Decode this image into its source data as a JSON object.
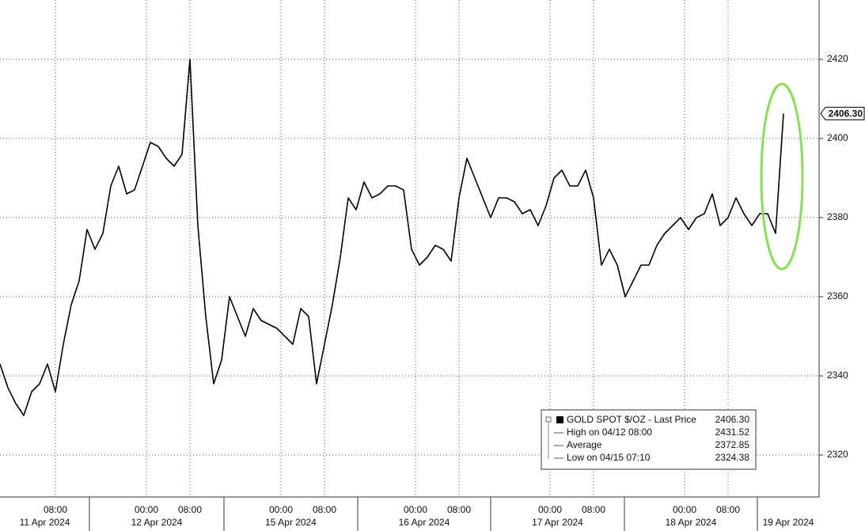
{
  "chart_data": {
    "type": "line",
    "x": [
      0,
      1,
      2,
      3,
      4,
      5,
      6,
      7,
      8,
      9,
      10,
      11,
      12,
      13,
      14,
      15,
      16,
      17,
      18,
      19,
      20,
      21,
      22,
      23,
      24,
      25,
      26,
      27,
      28,
      29,
      30,
      31,
      32,
      33,
      34,
      35,
      36,
      37,
      38,
      39,
      40,
      41,
      42,
      43,
      44,
      45,
      46,
      47,
      48,
      49,
      50,
      51,
      52,
      53,
      54,
      55,
      56,
      57,
      58,
      59,
      60,
      61,
      62,
      63,
      64,
      65,
      66,
      67,
      68,
      69,
      70,
      71,
      72,
      73,
      74,
      75,
      76,
      77,
      78,
      79,
      80,
      81,
      82,
      83,
      84,
      85,
      86,
      87,
      88,
      89,
      90,
      91,
      92,
      93,
      94,
      95,
      96,
      97,
      98,
      99
    ],
    "series": [
      {
        "name": "GOLD SPOT $/OZ - Last Price",
        "color": "#000000",
        "values": [
          2343,
          2337,
          2333,
          2330,
          2336,
          2338,
          2343,
          2336,
          2348,
          2358,
          2364,
          2377,
          2372,
          2376,
          2388,
          2393,
          2386,
          2387,
          2393,
          2399,
          2398,
          2395,
          2393,
          2396,
          2420,
          2378,
          2355,
          2338,
          2344,
          2360,
          2355,
          2350,
          2357,
          2354,
          2353,
          2352,
          2350,
          2348,
          2357,
          2355,
          2338,
          2348,
          2358,
          2370,
          2385,
          2382,
          2389,
          2385,
          2386,
          2388,
          2388,
          2387,
          2372,
          2368,
          2370,
          2373,
          2372,
          2369,
          2385,
          2395,
          2390,
          2385,
          2380,
          2385,
          2385,
          2384,
          2381,
          2382,
          2378,
          2383,
          2390,
          2392,
          2388,
          2388,
          2392,
          2385,
          2368,
          2372,
          2368,
          2360,
          2364,
          2368,
          2368,
          2373,
          2376,
          2378,
          2380,
          2377,
          2380,
          2381,
          2386,
          2378,
          2380,
          2385,
          2381,
          2378,
          2381,
          2381,
          2376,
          2406.3
        ]
      }
    ],
    "xlim": [
      0,
      103.5
    ],
    "ylim": [
      2309.4,
      2435
    ],
    "yticks": [
      2320,
      2340,
      2360,
      2380,
      2400,
      2420
    ],
    "xticks": [
      {
        "value": 7,
        "label": "08:00"
      },
      {
        "value": 18.5,
        "label": "00:00"
      },
      {
        "value": 24,
        "label": "08:00"
      },
      {
        "value": 35.5,
        "label": "00:00"
      },
      {
        "value": 41,
        "label": "08:00"
      },
      {
        "value": 52.5,
        "label": "00:00"
      },
      {
        "value": 58,
        "label": "08:00"
      },
      {
        "value": 69.5,
        "label": "00:00"
      },
      {
        "value": 75,
        "label": "08:00"
      },
      {
        "value": 86.5,
        "label": "00:00"
      },
      {
        "value": 92,
        "label": "08:00"
      }
    ],
    "date_labels": [
      {
        "value": 0,
        "label": "11 Apr 2024"
      },
      {
        "value": 11.3,
        "label": "12 Apr 2024"
      },
      {
        "value": 28.3,
        "label": "15 Apr 2024"
      },
      {
        "value": 45.2,
        "label": "16 Apr 2024"
      },
      {
        "value": 62,
        "label": "17 Apr 2024"
      },
      {
        "value": 78.9,
        "label": "18 Apr 2024"
      },
      {
        "value": 95.7,
        "label": "19 Apr 2024"
      }
    ],
    "grid": true,
    "last_price": {
      "value": 2406.3,
      "label": "2406.30"
    },
    "legend": {
      "title": "GOLD SPOT $/OZ - Last Price",
      "rows": [
        {
          "label": "High on 04/12 08:00",
          "value": 2431.52
        },
        {
          "label": "Average",
          "value": 2372.85
        },
        {
          "label": "Low on 04/15 07:10",
          "value": 2324.38
        }
      ]
    }
  }
}
